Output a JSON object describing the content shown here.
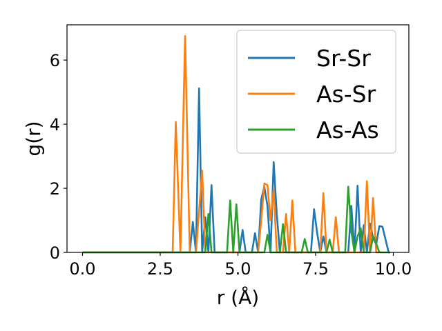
{
  "chart_data": {
    "type": "line",
    "xlabel": "r (Å)",
    "ylabel": "g(r)",
    "xlim": [
      -0.5,
      10.5
    ],
    "ylim": [
      0,
      7.1
    ],
    "xticks": [
      0.0,
      2.5,
      5.0,
      7.5,
      10.0
    ],
    "xtick_labels": [
      "0.0",
      "2.5",
      "5.0",
      "7.5",
      "10.0"
    ],
    "yticks": [
      0,
      2,
      4,
      6
    ],
    "ytick_labels": [
      "0",
      "2",
      "4",
      "6"
    ],
    "grid": false,
    "legend_position": "top-right",
    "series": [
      {
        "name": "Sr-Sr",
        "color": "#1f77b4",
        "x": [
          0,
          3.45,
          3.55,
          3.65,
          3.75,
          3.85,
          3.95,
          4.05,
          4.15,
          4.25,
          5.05,
          5.15,
          5.25,
          5.45,
          5.55,
          5.65,
          5.75,
          5.85,
          5.95,
          6.05,
          6.15,
          6.25,
          6.35,
          6.45,
          7.35,
          7.45,
          7.55,
          7.65,
          7.75,
          7.85,
          8.45,
          8.55,
          8.65,
          8.75,
          8.85,
          8.95,
          9.05,
          9.15,
          9.25,
          9.35,
          9.45,
          9.55,
          9.65,
          9.75,
          9.85,
          9.9
        ],
        "y": [
          0,
          0,
          0.95,
          0,
          5.12,
          0,
          1.1,
          0,
          2.1,
          0,
          0,
          0.7,
          0,
          0,
          0.6,
          0,
          1.65,
          2.05,
          1.45,
          0,
          2.82,
          1.2,
          0,
          0,
          0,
          1.35,
          0.6,
          0,
          0.5,
          0,
          0,
          0,
          1.45,
          0,
          2.08,
          0,
          0.85,
          0,
          0.9,
          0.45,
          0.25,
          0.82,
          0.8,
          0.4,
          0,
          0
        ]
      },
      {
        "name": "As-Sr",
        "color": "#ff7f0e",
        "x": [
          0,
          2.9,
          3.0,
          3.15,
          3.3,
          3.45,
          3.65,
          3.75,
          3.85,
          3.95,
          5.55,
          5.65,
          5.75,
          5.85,
          5.95,
          6.05,
          6.15,
          6.25,
          6.35,
          6.45,
          6.55,
          6.65,
          6.75,
          6.85,
          7.55,
          7.65,
          7.75,
          7.85,
          7.95,
          8.05,
          8.15,
          8.25,
          8.35,
          8.75,
          8.85,
          9.05,
          9.15,
          9.25,
          9.35,
          9.45,
          9.55
        ],
        "y": [
          0,
          0,
          4.07,
          0,
          6.75,
          0,
          0,
          1.3,
          2.55,
          0,
          0,
          0,
          1.0,
          2.15,
          2.1,
          1.0,
          1.95,
          0,
          0,
          0,
          1.2,
          0,
          1.62,
          0,
          0,
          0,
          1.85,
          0,
          0,
          0,
          1.1,
          0,
          0,
          0,
          0,
          0,
          2.22,
          0,
          1.7,
          0,
          0
        ]
      },
      {
        "name": "As-As",
        "color": "#2ca02c",
        "x": [
          0,
          3.85,
          3.95,
          4.05,
          4.15,
          4.25,
          4.65,
          4.75,
          4.85,
          4.95,
          5.05,
          5.85,
          5.95,
          6.05,
          6.35,
          6.45,
          6.55,
          7.05,
          7.15,
          7.25,
          7.85,
          7.95,
          8.05,
          8.45,
          8.55,
          8.65,
          8.75,
          8.85,
          8.95,
          9.05,
          9.25,
          9.35,
          9.45,
          9.55,
          9.65,
          9.9
        ],
        "y": [
          0,
          0,
          0,
          1.2,
          0,
          0,
          0,
          1.62,
          0,
          1.5,
          0,
          0,
          0.55,
          0,
          0,
          0.88,
          0,
          0,
          0.42,
          0,
          0,
          0.4,
          0,
          0,
          2.05,
          0.65,
          0,
          0.5,
          0.75,
          0,
          0,
          0.5,
          0.28,
          0,
          0,
          0
        ]
      }
    ]
  }
}
